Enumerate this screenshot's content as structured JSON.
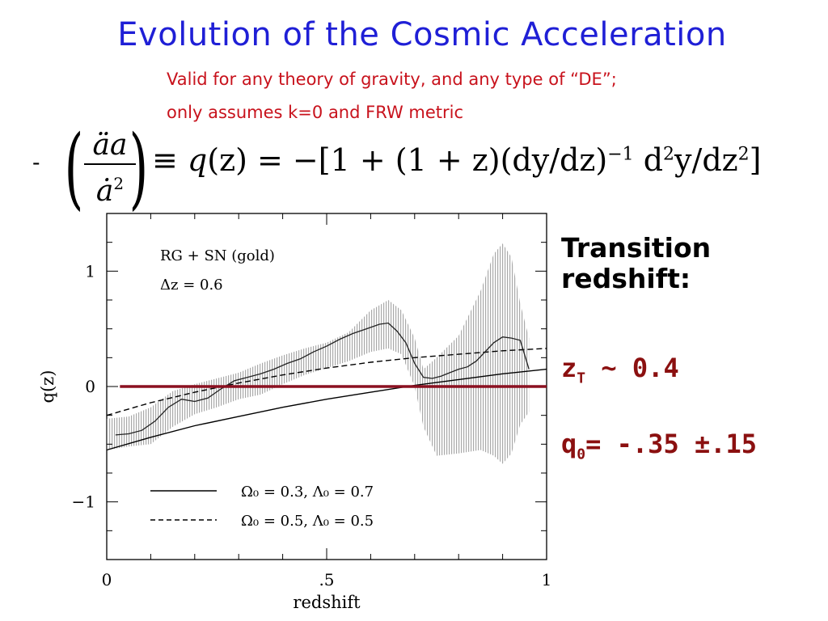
{
  "slide": {
    "title": "Evolution of the Cosmic Acceleration",
    "subtitle_line1": "Valid for any theory of gravity, and any type of “DE”;",
    "subtitle_line2": "only assumes k=0 and FRW metric",
    "equation": {
      "minus": "-",
      "lhs_numerator": "äa",
      "lhs_denominator": "ȧ",
      "lhs_den_power": "2",
      "rhs_lead": "≡ ",
      "rhs_q": "q",
      "rhs_z": "(z)",
      "rhs_eq": " = −[1 + (1 + z)(dy/dz)",
      "rhs_pow1": "−1",
      "rhs_d": " d",
      "rhs_pow2": "2",
      "rhs_mid": "y/dz",
      "rhs_pow3": "2",
      "rhs_end": "]"
    },
    "side_text": {
      "transition_line1": "Transition",
      "transition_line2": "redshift:",
      "zt_base": "z",
      "zt_sub": "T",
      "zt_value": " ~ 0.4",
      "q0_base": "q",
      "q0_sub": "0",
      "q0_value": "= -.35 ±.15"
    }
  },
  "colors": {
    "title": "#1f1fd6",
    "subtitle": "#c8121c",
    "side_values": "#8b1010",
    "zero_line": "#8b1020",
    "band": "#b8b8b8"
  },
  "chart_data": {
    "type": "line",
    "xlabel": "redshift",
    "ylabel": "q(z)",
    "xlim": [
      0,
      1
    ],
    "ylim": [
      -1.5,
      1.5
    ],
    "xticks": [
      {
        "value": 0,
        "label": "0"
      },
      {
        "value": 0.5,
        "label": ".5"
      },
      {
        "value": 1,
        "label": "1"
      }
    ],
    "yticks": [
      {
        "value": 1,
        "label": "1"
      },
      {
        "value": 0,
        "label": "0"
      },
      {
        "value": -1,
        "label": "−1"
      }
    ],
    "annotation_line1": "RG + SN (gold)",
    "annotation_line2": "Δz = 0.6",
    "zero_line_value": 0,
    "legend": [
      {
        "label": "Ω₀ = 0.3, Λ₀ = 0.7",
        "style": "solid"
      },
      {
        "label": "Ω₀ = 0.5, Λ₀ = 0.5",
        "style": "dashed"
      }
    ],
    "series": [
      {
        "name": "",
        "role": "data-fit",
        "x": [
          0.02,
          0.05,
          0.08,
          0.11,
          0.14,
          0.17,
          0.2,
          0.23,
          0.26,
          0.29,
          0.32,
          0.35,
          0.38,
          0.41,
          0.44,
          0.47,
          0.5,
          0.53,
          0.56,
          0.59,
          0.62,
          0.64,
          0.66,
          0.68,
          0.7,
          0.72,
          0.74,
          0.76,
          0.78,
          0.8,
          0.82,
          0.84,
          0.86,
          0.88,
          0.9,
          0.92,
          0.94,
          0.96
        ],
        "y": [
          -0.42,
          -0.41,
          -0.38,
          -0.3,
          -0.18,
          -0.11,
          -0.13,
          -0.1,
          -0.02,
          0.05,
          0.08,
          0.11,
          0.15,
          0.2,
          0.24,
          0.3,
          0.35,
          0.41,
          0.46,
          0.5,
          0.54,
          0.55,
          0.48,
          0.38,
          0.2,
          0.08,
          0.07,
          0.09,
          0.12,
          0.15,
          0.17,
          0.22,
          0.3,
          0.38,
          0.43,
          0.42,
          0.4,
          0.15
        ]
      },
      {
        "name": "",
        "role": "error-band-upper",
        "x": [
          0.0,
          0.05,
          0.1,
          0.15,
          0.2,
          0.25,
          0.3,
          0.35,
          0.4,
          0.45,
          0.5,
          0.55,
          0.6,
          0.64,
          0.67,
          0.7,
          0.72,
          0.75,
          0.8,
          0.85,
          0.88,
          0.9,
          0.92,
          0.94,
          0.96
        ],
        "y": [
          -0.28,
          -0.26,
          -0.18,
          -0.04,
          0.02,
          0.07,
          0.12,
          0.2,
          0.27,
          0.33,
          0.38,
          0.47,
          0.66,
          0.75,
          0.66,
          0.42,
          0.15,
          0.25,
          0.44,
          0.83,
          1.15,
          1.24,
          1.12,
          0.72,
          0.42
        ]
      },
      {
        "name": "",
        "role": "error-band-lower",
        "x": [
          0.0,
          0.05,
          0.1,
          0.15,
          0.2,
          0.25,
          0.3,
          0.35,
          0.4,
          0.45,
          0.5,
          0.55,
          0.6,
          0.64,
          0.67,
          0.7,
          0.72,
          0.75,
          0.8,
          0.85,
          0.88,
          0.9,
          0.92,
          0.94,
          0.96
        ],
        "y": [
          -0.55,
          -0.52,
          -0.5,
          -0.35,
          -0.24,
          -0.18,
          -0.11,
          -0.07,
          0.02,
          0.1,
          0.16,
          0.22,
          0.3,
          0.33,
          0.28,
          0.0,
          -0.35,
          -0.6,
          -0.58,
          -0.55,
          -0.6,
          -0.67,
          -0.58,
          -0.33,
          -0.22
        ]
      },
      {
        "name": "Ω₀ = 0.3, Λ₀ = 0.7",
        "role": "model-solid",
        "x": [
          0.0,
          0.1,
          0.2,
          0.3,
          0.4,
          0.5,
          0.6,
          0.7,
          0.8,
          0.9,
          1.0
        ],
        "y": [
          -0.55,
          -0.44,
          -0.34,
          -0.26,
          -0.18,
          -0.11,
          -0.05,
          0.01,
          0.06,
          0.11,
          0.15
        ]
      },
      {
        "name": "Ω₀ = 0.5, Λ₀ = 0.5",
        "role": "model-dashed",
        "x": [
          0.0,
          0.1,
          0.2,
          0.3,
          0.4,
          0.5,
          0.6,
          0.7,
          0.8,
          0.9,
          1.0
        ],
        "y": [
          -0.25,
          -0.14,
          -0.05,
          0.03,
          0.1,
          0.16,
          0.21,
          0.25,
          0.28,
          0.31,
          0.33
        ]
      }
    ],
    "grid": false
  }
}
